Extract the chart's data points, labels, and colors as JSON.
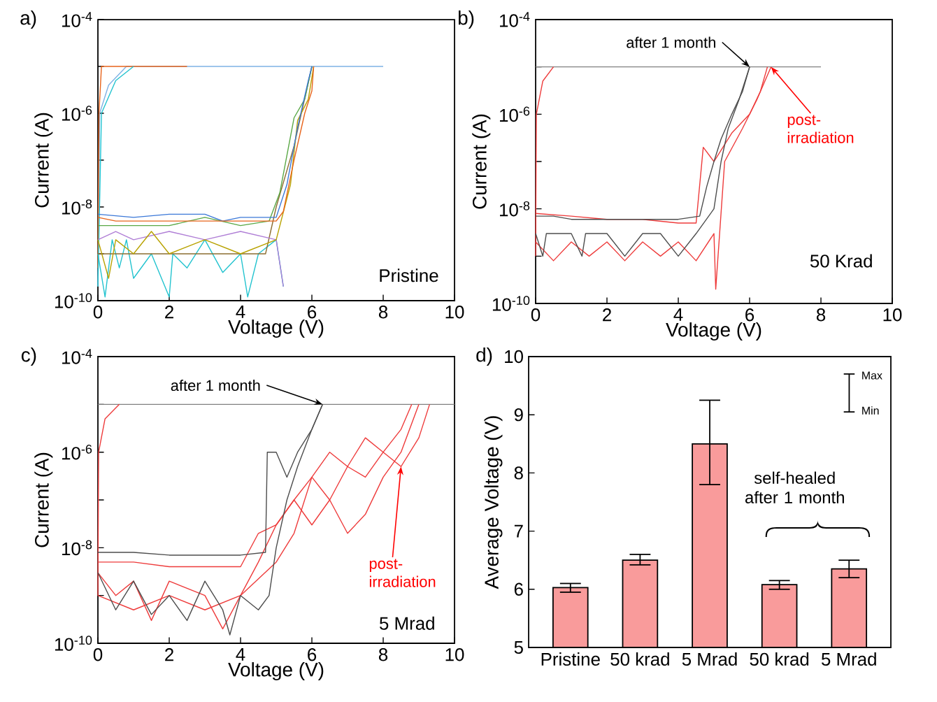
{
  "chart_data": [
    {
      "type": "line",
      "title": "a)",
      "xlabel": "Voltage (V)",
      "ylabel": "Current (A)",
      "log": "y",
      "marker": "none",
      "line_style": "solid",
      "xlim": [
        0,
        10
      ],
      "xticks": [
        0,
        2,
        4,
        6,
        8,
        10
      ],
      "ylim": [
        1e-10,
        0.0001
      ],
      "yticks": [
        {
          "value": 1e-10,
          "label": "10$^{-10}$"
        },
        {
          "value": 1e-09,
          "label": null
        },
        {
          "value": 1e-08,
          "label": "10$^{-8}$"
        },
        {
          "value": 1e-07,
          "label": null
        },
        {
          "value": 1e-06,
          "label": "10$^{-6}$"
        },
        {
          "value": 1e-05,
          "label": null
        },
        {
          "value": 0.0001,
          "label": "10$^{-4}$"
        }
      ],
      "series": [
        {
          "color": "#7fb2e5",
          "x": [
            0,
            0.05,
            0.3,
            0.8,
            8
          ],
          "values": [
            2e-10,
            1e-06,
            4e-06,
            1e-05,
            1e-05
          ]
        },
        {
          "color": "#e8641b",
          "x": [
            0,
            0.03,
            0.1,
            2.5
          ],
          "values": [
            5e-10,
            1e-06,
            1e-05,
            1e-05
          ]
        },
        {
          "color": "#22c3cf",
          "x": [
            0,
            0.1,
            0.5,
            1
          ],
          "values": [
            2e-10,
            1e-06,
            5e-06,
            1e-05
          ]
        },
        {
          "color": "#22c3cf",
          "x": [
            0,
            0.2,
            0.4,
            0.6,
            0.8,
            1,
            1.5,
            2,
            2.1,
            2.5,
            3,
            3.5,
            4,
            4.2,
            4.5,
            5,
            5.2
          ],
          "values": [
            1e-09,
            1.2e-10,
            2e-09,
            5e-10,
            2e-09,
            3e-10,
            1e-09,
            1.2e-10,
            1e-09,
            5e-10,
            2e-09,
            4e-10,
            1e-09,
            1.2e-10,
            1e-09,
            2e-09,
            2e-10
          ]
        },
        {
          "color": "#8c6d31",
          "x": [
            0,
            4.7,
            5.0,
            5.5,
            6.0
          ],
          "values": [
            1e-09,
            1e-09,
            1e-08,
            2e-07,
            1e-05
          ]
        },
        {
          "color": "#b07fd6",
          "x": [
            0,
            0.5,
            1,
            2,
            3,
            4,
            5,
            5.2
          ],
          "values": [
            2e-09,
            3e-09,
            2e-09,
            3e-09,
            2e-09,
            3e-09,
            2e-09,
            2e-10
          ]
        },
        {
          "color": "#b8a200",
          "x": [
            0,
            0.3,
            0.5,
            1,
            1.5,
            2,
            3,
            4,
            5,
            5.4,
            5.6,
            5.9,
            6.05
          ],
          "values": [
            2e-09,
            3e-10,
            2e-09,
            1e-09,
            3e-09,
            1e-09,
            2e-09,
            1e-09,
            2e-09,
            3e-08,
            7e-07,
            2e-06,
            1e-05
          ]
        },
        {
          "color": "#5aa846",
          "x": [
            0,
            1,
            2,
            3,
            4,
            4.8,
            5.1,
            5.5,
            5.8,
            6.0
          ],
          "values": [
            4e-09,
            4e-09,
            4e-09,
            6e-09,
            4e-09,
            5e-09,
            2e-08,
            8e-07,
            2e-06,
            1e-05
          ]
        },
        {
          "color": "#3b78d8",
          "x": [
            0,
            1,
            2,
            3,
            3.5,
            4,
            5,
            5.3,
            5.6,
            5.9,
            6.0
          ],
          "values": [
            7e-09,
            6e-09,
            7e-09,
            7e-09,
            5e-09,
            6e-09,
            6e-09,
            3e-08,
            5e-07,
            5e-06,
            1e-05
          ]
        },
        {
          "color": "#e8641b",
          "x": [
            0,
            0.5,
            1,
            2,
            3,
            4,
            5,
            5.2,
            5.5,
            5.8,
            6,
            6.05
          ],
          "values": [
            6e-09,
            5e-09,
            5e-09,
            5e-09,
            5e-09,
            5e-09,
            5e-09,
            8e-09,
            1e-07,
            1e-06,
            3e-06,
            1e-05
          ]
        }
      ],
      "annotations": [
        "Pristine"
      ]
    },
    {
      "type": "line",
      "title": "b)",
      "xlabel": "Voltage (V)",
      "ylabel": "Current (A)",
      "log": "y",
      "marker": "none",
      "line_style": "solid",
      "xlim": [
        0,
        10
      ],
      "xticks": [
        0,
        2,
        4,
        6,
        8,
        10
      ],
      "ylim": [
        1e-10,
        0.0001
      ],
      "yticks": [
        {
          "value": 1e-10,
          "label": "10$^{-10}$"
        },
        {
          "value": 1e-09,
          "label": null
        },
        {
          "value": 1e-08,
          "label": "10$^{-8}$"
        },
        {
          "value": 1e-07,
          "label": null
        },
        {
          "value": 1e-06,
          "label": "10$^{-6}$"
        },
        {
          "value": 1e-05,
          "label": null
        },
        {
          "value": 0.0001,
          "label": "10$^{-4}$"
        }
      ],
      "series": [
        {
          "color": "#808080",
          "x": [
            0,
            8
          ],
          "values": [
            1e-05,
            1e-05
          ]
        },
        {
          "color": "#ee3b3b",
          "x": [
            0,
            0.02,
            0.2,
            0.5
          ],
          "values": [
            1e-09,
            1e-06,
            5e-06,
            1e-05
          ]
        },
        {
          "color": "#ee3b3b",
          "x": [
            0,
            1,
            2,
            3,
            4,
            4.5,
            4.7,
            5,
            5.5,
            6,
            6.3,
            6.5
          ],
          "values": [
            8e-09,
            7e-09,
            6e-09,
            6e-09,
            5e-09,
            5e-09,
            2e-07,
            1e-07,
            4e-07,
            1e-06,
            3e-06,
            1e-05
          ]
        },
        {
          "color": "#ee3b3b",
          "x": [
            0,
            0.5,
            1,
            1.5,
            2,
            2.5,
            3,
            3.5,
            4,
            4.5,
            5,
            5.05,
            5.3,
            5.8,
            6.2,
            6.6
          ],
          "values": [
            2e-09,
            8e-10,
            2e-09,
            1e-09,
            2e-09,
            8e-10,
            2e-09,
            1e-09,
            2e-09,
            8e-10,
            3e-09,
            2e-10,
            1e-07,
            5e-07,
            2e-06,
            1e-05
          ]
        },
        {
          "color": "#4d4d4d",
          "x": [
            0,
            0.5,
            1,
            2,
            3,
            4,
            4.6,
            4.8,
            5.0,
            5.2,
            5.5,
            5.8,
            6.0
          ],
          "values": [
            7e-09,
            7e-09,
            6e-09,
            6e-09,
            6e-09,
            6e-09,
            7e-09,
            3e-08,
            1e-07,
            3e-07,
            1e-06,
            3e-06,
            1e-05
          ]
        },
        {
          "color": "#4d4d4d",
          "x": [
            0,
            0.2,
            0.3,
            1,
            1.3,
            1.4,
            2,
            2.5,
            3,
            3.5,
            4,
            4.5,
            5,
            5.2,
            5.4,
            5.7,
            6.0
          ],
          "values": [
            3e-09,
            1e-09,
            3e-09,
            3e-09,
            1e-09,
            3e-09,
            3e-09,
            1e-09,
            3e-09,
            3e-09,
            1e-09,
            3e-09,
            1e-08,
            1e-07,
            5e-07,
            2e-06,
            1e-05
          ]
        }
      ],
      "annotations": [
        {
          "text": "after 1 month",
          "x": 6,
          "y": 1e-05
        },
        {
          "text": "post-irradiation",
          "x": 6.6,
          "y": 1e-05
        },
        "50 Krad"
      ]
    },
    {
      "type": "line",
      "title": "c)",
      "xlabel": "Voltage (V)",
      "ylabel": "Current (A)",
      "log": "y",
      "marker": "none",
      "line_style": "solid",
      "xlim": [
        0,
        10
      ],
      "xticks": [
        0,
        2,
        4,
        6,
        8,
        10
      ],
      "ylim": [
        1e-10,
        0.0001
      ],
      "yticks": [
        {
          "value": 1e-10,
          "label": "10$^{-10}$"
        },
        {
          "value": 1e-09,
          "label": null
        },
        {
          "value": 1e-08,
          "label": "10$^{-8}$"
        },
        {
          "value": 1e-07,
          "label": null
        },
        {
          "value": 1e-06,
          "label": "10$^{-6}$"
        },
        {
          "value": 1e-05,
          "label": null
        },
        {
          "value": 0.0001,
          "label": "10$^{-4}$"
        }
      ],
      "series": [
        {
          "color": "#808080",
          "x": [
            0,
            10
          ],
          "values": [
            1e-05,
            1e-05
          ]
        },
        {
          "color": "#ee3b3b",
          "x": [
            0,
            0.02,
            0.2,
            0.6
          ],
          "values": [
            1e-09,
            1e-06,
            5e-06,
            1e-05
          ]
        },
        {
          "color": "#ee3b3b",
          "x": [
            0,
            0.5,
            1,
            1.5,
            2,
            3,
            3.5,
            4,
            4.5,
            5,
            5.5,
            6,
            6.5,
            7,
            7.5,
            8,
            8.5,
            9,
            9.3
          ],
          "values": [
            3e-09,
            1e-09,
            2e-09,
            3e-10,
            2e-09,
            1e-09,
            2e-10,
            1e-09,
            5e-09,
            3e-08,
            1e-07,
            3e-07,
            1e-07,
            5e-07,
            3e-07,
            1e-06,
            5e-07,
            2e-06,
            1e-05
          ]
        },
        {
          "color": "#ee3b3b",
          "x": [
            0,
            1,
            2,
            3,
            4,
            4.5,
            5,
            5.5,
            6,
            6.5,
            7,
            7.5,
            8,
            8.5,
            9
          ],
          "values": [
            5e-09,
            5e-09,
            4e-09,
            4e-09,
            4e-09,
            2e-08,
            3e-08,
            1e-07,
            3e-08,
            1e-07,
            2e-08,
            5e-08,
            3e-07,
            1e-06,
            1e-05
          ]
        },
        {
          "color": "#ee3b3b",
          "x": [
            0,
            1,
            2,
            3,
            4,
            5,
            5.5,
            6,
            6.5,
            7,
            7.5,
            8,
            8.5,
            8.8
          ],
          "values": [
            1e-09,
            5e-10,
            1e-09,
            5e-10,
            1e-09,
            5e-09,
            2e-08,
            3e-07,
            1e-06,
            5e-07,
            2e-06,
            1e-06,
            3e-06,
            1e-05
          ]
        },
        {
          "color": "#4d4d4d",
          "x": [
            0,
            1,
            2,
            3,
            4,
            4.7,
            4.75,
            5,
            5.3,
            5.6,
            6,
            6.3
          ],
          "values": [
            8e-09,
            8e-09,
            7e-09,
            7e-09,
            7e-09,
            8e-09,
            1e-06,
            1e-06,
            3e-07,
            1e-06,
            3e-06,
            1e-05
          ]
        },
        {
          "color": "#4d4d4d",
          "x": [
            0,
            0.5,
            1,
            1.5,
            2,
            2.5,
            3,
            3.5,
            3.7,
            4,
            4.5,
            4.8,
            5,
            5.3,
            5.6,
            6,
            6.3
          ],
          "values": [
            3e-09,
            5e-10,
            2e-09,
            4e-10,
            1e-09,
            3e-10,
            2e-09,
            5e-10,
            1.5e-10,
            1e-09,
            5e-10,
            1e-09,
            1e-08,
            1e-07,
            5e-07,
            3e-06,
            1e-05
          ]
        }
      ],
      "annotations": [
        {
          "text": "after 1 month",
          "x": 6.3,
          "y": 1e-05
        },
        {
          "text": "post-irradiation",
          "x": 8.5,
          "y": 5e-07
        },
        "5 Mrad"
      ]
    },
    {
      "type": "bar",
      "title": "d)",
      "ylabel": "Average Voltage (V)",
      "categories": [
        "Pristine",
        "50 krad",
        "5 Mrad",
        "50 krad",
        "5 Mrad"
      ],
      "values": [
        6.03,
        6.5,
        8.5,
        6.08,
        6.35
      ],
      "color": "#f99b9b",
      "errors": [
        [
          5.95,
          6.1
        ],
        [
          6.42,
          6.6
        ],
        [
          7.8,
          9.25
        ],
        [
          6.0,
          6.15
        ],
        [
          6.2,
          6.5
        ]
      ],
      "ylim": [
        5,
        10
      ],
      "yticks": [
        5,
        6,
        7,
        8,
        9,
        10
      ],
      "annotations": [
        "self-healed after 1 month",
        "Max",
        "Min"
      ]
    }
  ]
}
